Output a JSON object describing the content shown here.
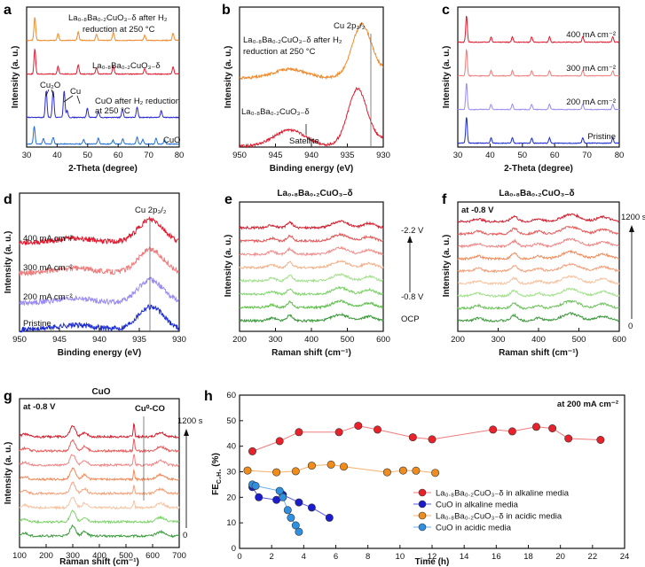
{
  "chart_data": [
    {
      "id": "a",
      "type": "line",
      "panel_label": "a",
      "xlabel": "2-Theta (degree)",
      "ylabel": "Intensity (a. u.)",
      "xlim": [
        30,
        80
      ],
      "xticks": [
        30,
        40,
        50,
        60,
        70,
        80
      ],
      "series": [
        {
          "name": "CuO",
          "color": "#1e6fd9",
          "peaks": [
            32.5,
            35.5,
            38.7,
            48.7,
            53.5,
            58.3,
            61.5,
            66.2,
            68.1,
            72.4,
            75.2
          ]
        },
        {
          "name": "CuO after H2 reduction at 250 °C",
          "color": "#2a2ad0",
          "peaks": [
            36.4,
            38.7,
            42.3,
            43.3,
            49.9,
            53.5,
            61.4,
            66.2,
            74.1
          ]
        },
        {
          "name": "La0.8Ba0.2CuO3-δ",
          "color": "#e01b2f",
          "peaks": [
            32.7,
            40.3,
            46.9,
            52.9,
            58.4,
            68.7,
            78.0
          ]
        },
        {
          "name": "La0.8Ba0.2CuO3-δ after H2 reduction at 250 °C",
          "color": "#f08a2c",
          "peaks": [
            32.7,
            40.3,
            46.9,
            52.9,
            58.4,
            68.7,
            78.0
          ]
        }
      ],
      "labels": {
        "cuo": "CuO",
        "reduced_cuo_1": "CuO after H₂ reduction",
        "reduced_cuo_2": "at 250 °C",
        "lbco": "La₀.₈Ba₀.₂CuO₃₋δ",
        "lbco_reduced": "La₀.₈Ba₀.₂CuO₃₋δ after H₂",
        "lbco_reduced_2": "reduction at 250 °C",
        "cu2o": "Cu₂O",
        "cu": "Cu"
      }
    },
    {
      "id": "b",
      "type": "line",
      "panel_label": "b",
      "xlabel": "Binding energy (eV)",
      "ylabel": "Intensity (a. u.)",
      "xlim": [
        950,
        930
      ],
      "xticks": [
        950,
        945,
        940,
        935,
        930
      ],
      "series": [
        {
          "name": "La0.8Ba0.2CuO3-δ after H2 reduction at 250 °C",
          "color": "#f08a2c",
          "main_peak": 933.0
        },
        {
          "name": "La0.8Ba0.2CuO3-δ",
          "color": "#e01b2f",
          "main_peak": 933.6,
          "satellite": 943.0
        }
      ],
      "labels": {
        "reduced_1": "La₀.₈Ba₀.₂CuO₃₋δ after H₂",
        "reduced_2": "reduction at 250 °C",
        "pristine": "La₀.₈Ba₀.₂CuO₃₋δ",
        "satellite": "Satellite",
        "cu2p": "Cu 2p₃/₂"
      }
    },
    {
      "id": "c",
      "type": "line",
      "panel_label": "c",
      "xlabel": "2-Theta (degree)",
      "ylabel": "Intensity (a. u.)",
      "xlim": [
        30,
        80
      ],
      "xticks": [
        30,
        40,
        50,
        60,
        70,
        80
      ],
      "series": [
        {
          "name": "Pristine",
          "color": "#1a2ad4"
        },
        {
          "name": "200 mA cm-2",
          "color": "#9a8cf0"
        },
        {
          "name": "300 mA cm-2",
          "color": "#f07c7c"
        },
        {
          "name": "400 mA cm-2",
          "color": "#e01b2f"
        }
      ],
      "peaks": [
        32.7,
        40.3,
        46.9,
        52.9,
        58.4,
        68.7,
        78.0
      ],
      "labels": [
        "Pristine",
        "200 mA cm⁻²",
        "300 mA cm⁻²",
        "400 mA cm⁻²"
      ]
    },
    {
      "id": "d",
      "type": "line",
      "panel_label": "d",
      "xlabel": "Binding energy (eV)",
      "ylabel": "Intensity (a. u.)",
      "xlim": [
        950,
        930
      ],
      "xticks": [
        950,
        945,
        940,
        935,
        930
      ],
      "series": [
        {
          "name": "Pristine",
          "color": "#1a2ad4"
        },
        {
          "name": "200 mA cm-2",
          "color": "#9a8cf0"
        },
        {
          "name": "300 mA cm-2",
          "color": "#f07c7c"
        },
        {
          "name": "400 mA cm-2",
          "color": "#e01b2f"
        }
      ],
      "peak_position": 933.6,
      "labels": [
        "Pristine",
        "200 mA cm⁻²",
        "300 mA cm⁻²",
        "400 mA cm⁻²"
      ],
      "peak_label": "Cu 2p₃/₂"
    },
    {
      "id": "e",
      "type": "line",
      "panel_label": "e",
      "title": "La₀.₈Ba₀.₂CuO₃₋δ",
      "xlabel": "Raman shift (cm⁻¹)",
      "ylabel": "Intensity (a. u.)",
      "xlim": [
        200,
        600
      ],
      "xticks": [
        200,
        300,
        400,
        500,
        600
      ],
      "curves": 8,
      "colors": [
        "#3a9a3a",
        "#5fbf4a",
        "#7ed36a",
        "#a0e08a",
        "#f2b08a",
        "#f09090",
        "#e05a5a",
        "#d21f2f"
      ],
      "labels": {
        "top": "-2.2 V",
        "mid": "-0.8 V",
        "bottom": "OCP"
      }
    },
    {
      "id": "f",
      "type": "line",
      "panel_label": "f",
      "title": "La₀.₈Ba₀.₂CuO₃₋δ",
      "xlabel": "Raman shift (cm⁻¹)",
      "ylabel": "Intensity (a. u.)",
      "xlim": [
        200,
        600
      ],
      "xticks": [
        200,
        300,
        400,
        500,
        600
      ],
      "curves": 9,
      "colors": [
        "#3a9a3a",
        "#6cc25a",
        "#a0e08a",
        "#f6c2a0",
        "#f4a07a",
        "#f08a5a",
        "#f08585",
        "#e95a5a",
        "#d21f2f"
      ],
      "labels": {
        "potential": "at -0.8 V",
        "top": "1200 s",
        "bottom": "0"
      }
    },
    {
      "id": "g",
      "type": "line",
      "panel_label": "g",
      "title": "CuO",
      "xlabel": "Raman shift (cm⁻¹)",
      "ylabel": "Intensity (a. u.)",
      "xlim": [
        100,
        700
      ],
      "xticks": [
        100,
        200,
        300,
        400,
        500,
        600,
        700
      ],
      "curves": 8,
      "colors": [
        "#3a9a3a",
        "#7ed36a",
        "#f6c2a0",
        "#f4a07a",
        "#f08a5a",
        "#f08585",
        "#e95a5a",
        "#d21f2f"
      ],
      "labels": {
        "potential": "at -0.8 V",
        "top": "1200 s",
        "bottom": "0",
        "peak": "Cu⁰-CO"
      }
    },
    {
      "id": "h",
      "type": "scatter",
      "panel_label": "h",
      "xlabel": "Time (h)",
      "ylabel": "FE",
      "ylabel_sub": "C₂H₄",
      "ylabel_unit": " (%)",
      "xlim": [
        0,
        24
      ],
      "ylim": [
        0,
        60
      ],
      "xticks": [
        0,
        2,
        4,
        6,
        8,
        10,
        12,
        14,
        16,
        18,
        20,
        22,
        24
      ],
      "yticks": [
        0,
        10,
        20,
        30,
        40,
        50,
        60
      ],
      "annotation": "at 200 mA cm⁻²",
      "series": [
        {
          "name": "La₀.₈Ba₀.₂CuO₃₋δ in alkaline media",
          "color": "#e8222a",
          "line": "#f07a7a",
          "x": [
            0.8,
            2.5,
            3.7,
            6.2,
            7.4,
            8.6,
            10.8,
            12.0,
            15.8,
            17.0,
            18.5,
            19.5,
            20.5,
            22.5
          ],
          "y": [
            38.0,
            42.0,
            45.5,
            45.5,
            48.0,
            46.5,
            43.5,
            42.7,
            46.5,
            45.8,
            47.6,
            47.0,
            43.0,
            42.5
          ]
        },
        {
          "name": "CuO in alkaline media",
          "color": "#1c1ccc",
          "line": "#5a5adc",
          "x": [
            0.8,
            1.2,
            2.3,
            2.7,
            3.7,
            4.5,
            5.6
          ],
          "y": [
            24.0,
            20.0,
            19.0,
            21.0,
            18.0,
            16.0,
            12.0
          ]
        },
        {
          "name": "La₀.₈Ba₀.₂CuO₃₋δ in acidic media",
          "color": "#f08c1c",
          "line": "#f5b06a",
          "x": [
            0.5,
            2.3,
            3.5,
            4.5,
            5.7,
            6.5,
            9.2,
            10.2,
            11.0,
            12.2
          ],
          "y": [
            30.5,
            29.8,
            30.2,
            32.4,
            32.8,
            32.0,
            29.8,
            30.5,
            30.4,
            29.6
          ]
        },
        {
          "name": "CuO in acidic media",
          "color": "#2f8fe0",
          "line": "#6ab3ee",
          "x": [
            0.8,
            1.0,
            2.5,
            2.7,
            3.0,
            3.2,
            3.5,
            3.7
          ],
          "y": [
            25.0,
            24.5,
            22.5,
            20.0,
            15.0,
            12.0,
            9.0,
            6.5
          ]
        }
      ]
    }
  ]
}
